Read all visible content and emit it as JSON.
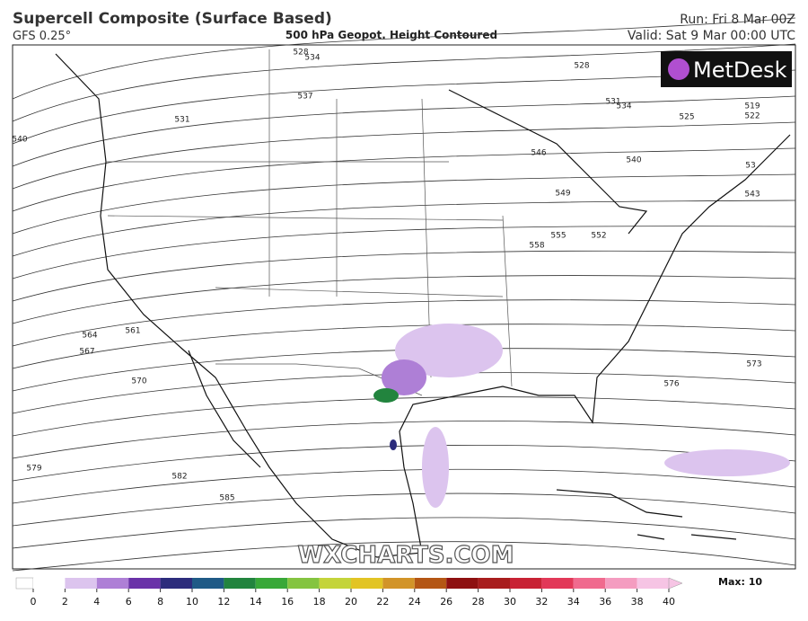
{
  "header": {
    "title": "Supercell Composite (Surface Based)",
    "model": "GFS 0.25°",
    "subtitle": "500 hPa Geopot. Height Contoured",
    "run": "Run: Fri 8 Mar 00Z",
    "valid": "Valid: Sat 9 Mar 00:00 UTC"
  },
  "logo": "MetDesk",
  "watermark": "WXCHARTS.COM",
  "contour_labels": [
    "528",
    "534",
    "537",
    "531",
    "540",
    "528",
    "534",
    "531",
    "525",
    "519",
    "522",
    "540",
    "546",
    "549",
    "53",
    "543",
    "555",
    "552",
    "558",
    "561",
    "564",
    "567",
    "570",
    "573",
    "576",
    "579",
    "582",
    "585"
  ],
  "colorbar": {
    "ticks": [
      0,
      2,
      4,
      6,
      8,
      10,
      12,
      14,
      16,
      18,
      20,
      22,
      24,
      26,
      28,
      30,
      32,
      34,
      36,
      38,
      40
    ],
    "colors": [
      "#ffffff",
      "#dcc4ee",
      "#ae7fd6",
      "#6a32a8",
      "#2c2c7c",
      "#1f5a86",
      "#22843e",
      "#38a838",
      "#84c440",
      "#c4d43a",
      "#e2c424",
      "#d29428",
      "#b45614",
      "#8e1010",
      "#a81c1c",
      "#c82234",
      "#e23858",
      "#f06a8e",
      "#f49cc0",
      "#f6c4e4"
    ],
    "max_label": "Max: 10"
  }
}
